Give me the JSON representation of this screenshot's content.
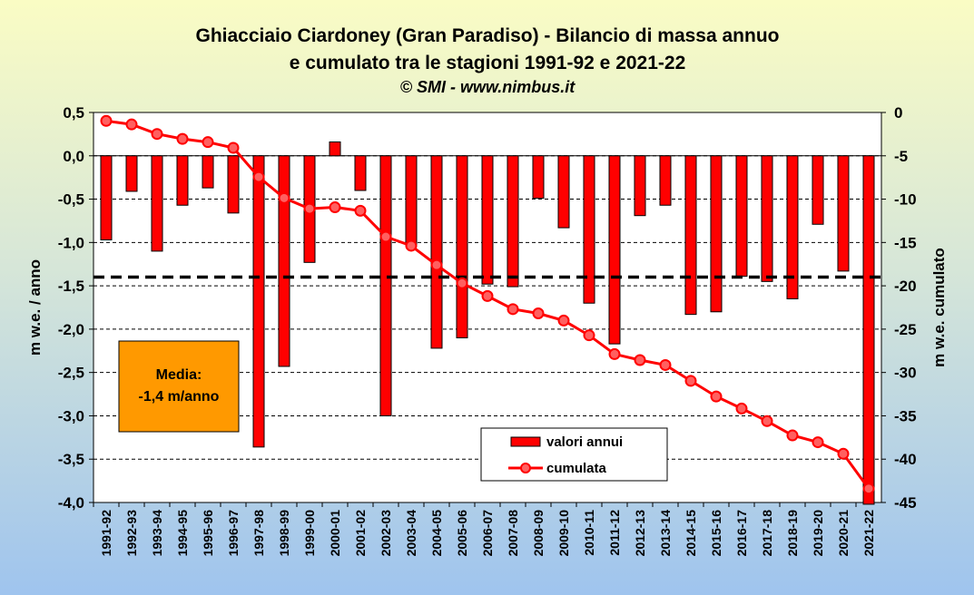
{
  "chart_data": {
    "type": "bar",
    "title_line1": "Ghiacciaio Ciardoney (Gran Paradiso) - Bilancio di massa annuo",
    "title_line2": "e cumulato tra le stagioni 1991-92 e 2021-22",
    "subtitle": "© SMI - www.nimbus.it",
    "ylabel_left": "m w.e. / anno",
    "ylabel_right": "m w.e. cumulato",
    "ylim_left": [
      -4.0,
      0.5
    ],
    "ylim_right": [
      -45,
      0
    ],
    "yticks_left": [
      "0,5",
      "0,0",
      "-0,5",
      "-1,0",
      "-1,5",
      "-2,0",
      "-2,5",
      "-3,0",
      "-3,5",
      "-4,0"
    ],
    "yticks_right": [
      "0",
      "-5",
      "-10",
      "-15",
      "-20",
      "-25",
      "-30",
      "-35",
      "-40",
      "-45"
    ],
    "categories": [
      "1991-92",
      "1992-93",
      "1993-94",
      "1994-95",
      "1995-96",
      "1996-97",
      "1997-98",
      "1998-99",
      "1999-00",
      "2000-01",
      "2001-02",
      "2002-03",
      "2003-04",
      "2004-05",
      "2005-06",
      "2006-07",
      "2007-08",
      "2008-09",
      "2009-10",
      "2010-11",
      "2011-12",
      "2012-13",
      "2013-14",
      "2014-15",
      "2015-16",
      "2016-17",
      "2017-18",
      "2018-19",
      "2019-20",
      "2020-21",
      "2021-22"
    ],
    "series": [
      {
        "name": "valori annui",
        "axis": "left",
        "type": "bar",
        "color": "#ff0000",
        "values": [
          -0.97,
          -0.41,
          -1.1,
          -0.57,
          -0.37,
          -0.66,
          -3.36,
          -2.43,
          -1.23,
          0.16,
          -0.4,
          -3.0,
          -1.04,
          -2.22,
          -2.1,
          -1.48,
          -1.51,
          -0.49,
          -0.83,
          -1.7,
          -2.17,
          -0.69,
          -0.57,
          -1.83,
          -1.8,
          -1.39,
          -1.45,
          -1.65,
          -0.79,
          -1.33,
          -4.02
        ]
      },
      {
        "name": "cumulata",
        "axis": "right",
        "type": "line",
        "color": "#ff0000",
        "values": [
          -0.97,
          -1.38,
          -2.48,
          -3.05,
          -3.42,
          -4.08,
          -7.44,
          -9.87,
          -11.1,
          -10.94,
          -11.34,
          -14.34,
          -15.38,
          -17.6,
          -19.7,
          -21.18,
          -22.69,
          -23.18,
          -24.01,
          -25.71,
          -27.88,
          -28.57,
          -29.14,
          -30.97,
          -32.77,
          -34.16,
          -35.61,
          -37.26,
          -38.05,
          -39.38,
          -43.4
        ]
      }
    ],
    "mean_line": {
      "value": -1.4,
      "style": "dashed",
      "color": "#000000"
    },
    "annotation": {
      "line1": "Media:",
      "line2": "-1,4 m/anno",
      "background": "#ff9900"
    },
    "legend_position": "bottom-center",
    "grid": "horizontal dashed"
  }
}
